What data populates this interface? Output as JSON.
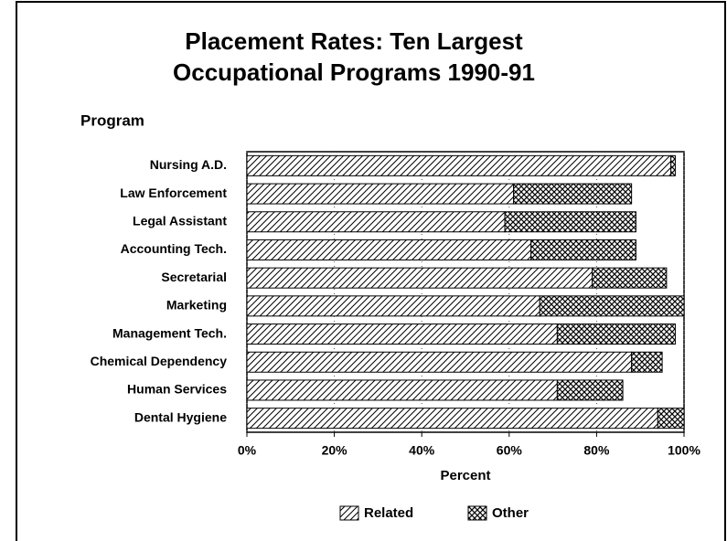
{
  "chart_data": {
    "type": "stacked-barh",
    "title": [
      "Placement Rates: Ten Largest",
      "Occupational Programs 1990-91"
    ],
    "y_label": "Program",
    "x_label": "Percent",
    "categories": [
      "Nursing A.D.",
      "Law Enforcement",
      "Legal Assistant",
      "Accounting Tech.",
      "Secretarial",
      "Marketing",
      "Management Tech.",
      "Chemical Dependency",
      "Human Services",
      "Dental Hygiene"
    ],
    "series": [
      {
        "name": "Related",
        "color": "#000000",
        "pattern": "diagonal",
        "values": [
          97,
          61,
          59,
          65,
          79,
          67,
          71,
          88,
          71,
          94
        ]
      },
      {
        "name": "Other",
        "color": "#000000",
        "pattern": "crosshatch",
        "values": [
          1,
          27,
          30,
          24,
          17,
          33,
          27,
          7,
          15,
          6
        ]
      }
    ],
    "xlim": [
      0,
      100
    ],
    "xticks": [
      {
        "value": 0,
        "label": "0%"
      },
      {
        "value": 20,
        "label": "20%"
      },
      {
        "value": 40,
        "label": "40%"
      },
      {
        "value": 60,
        "label": "60%"
      },
      {
        "value": 80,
        "label": "80%"
      },
      {
        "value": 100,
        "label": "100%"
      }
    ],
    "grid": true,
    "legend": "bottom"
  }
}
